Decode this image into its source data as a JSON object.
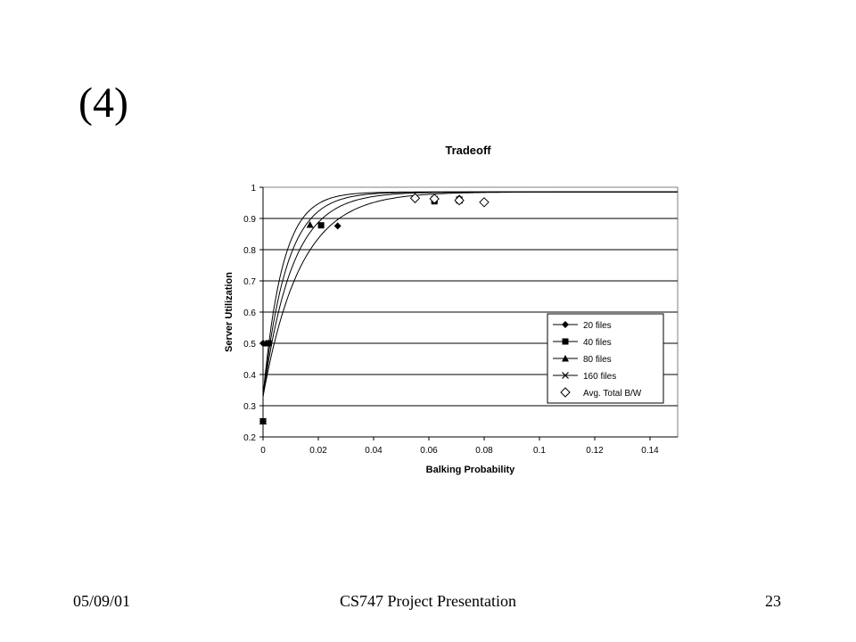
{
  "slide": {
    "title": "(4)",
    "footer_date": "05/09/01",
    "footer_center": "CS747 Project Presentation",
    "footer_page": "23"
  },
  "chart_data": {
    "type": "scatter",
    "title": "Tradeoff",
    "xlabel": "Balking Probability",
    "ylabel": "Server Utilization",
    "xlim": [
      0,
      0.15
    ],
    "ylim": [
      0.2,
      1
    ],
    "x_ticks": [
      "0",
      "0.02",
      "0.04",
      "0.06",
      "0.08",
      "0.1",
      "0.12",
      "0.14"
    ],
    "y_ticks": [
      "0.2",
      "0.3",
      "0.4",
      "0.5",
      "0.6",
      "0.7",
      "0.8",
      "0.9",
      "1"
    ],
    "grid": "horizontal",
    "legend_position": "right",
    "series": [
      {
        "name": "20 files",
        "marker": "diamond-filled",
        "points": [
          [
            0.0,
            0.25
          ],
          [
            0.0,
            0.5
          ],
          [
            0.027,
            0.876
          ],
          [
            0.071,
            0.965
          ]
        ],
        "k": 0.0135
      },
      {
        "name": "40 files",
        "marker": "square-filled",
        "points": [
          [
            0.0,
            0.25
          ],
          [
            0.002,
            0.5
          ],
          [
            0.021,
            0.878
          ],
          [
            0.062,
            0.955
          ]
        ],
        "k": 0.0105
      },
      {
        "name": "80 files",
        "marker": "triangle-filled",
        "points": [
          [
            0.0,
            0.25
          ],
          [
            0.001,
            0.5
          ],
          [
            0.017,
            0.88
          ],
          [
            0.071,
            0.958
          ]
        ],
        "k": 0.0085
      },
      {
        "name": "160 files",
        "marker": "x",
        "points": [
          [
            0.0,
            0.25
          ],
          [
            0.001,
            0.5
          ],
          [
            0.062,
            0.962
          ],
          [
            0.071,
            0.96
          ]
        ],
        "k": 0.007
      },
      {
        "name": "Avg. Total B/W",
        "marker": "diamond-open",
        "points": [
          [
            0.055,
            0.965
          ],
          [
            0.062,
            0.963
          ],
          [
            0.071,
            0.958
          ],
          [
            0.08,
            0.952
          ]
        ]
      }
    ]
  }
}
